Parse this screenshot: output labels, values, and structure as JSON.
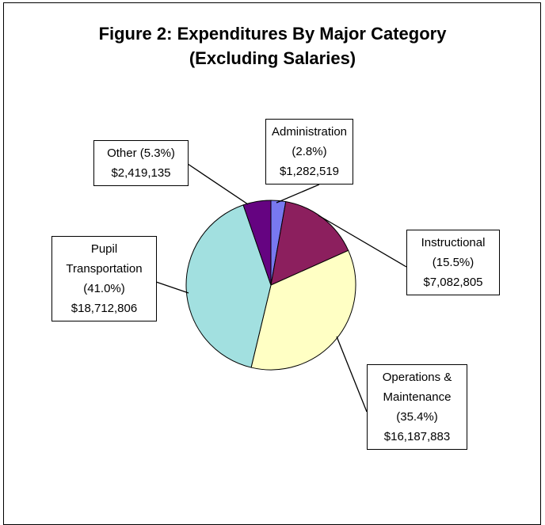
{
  "chart_data": {
    "type": "pie",
    "title": "Figure 2:  Expenditures By Major Category (Excluding Salaries)",
    "categories": [
      "Administration",
      "Instructional",
      "Operations & Maintenance",
      "Pupil Transportation",
      "Other"
    ],
    "values": [
      1282519,
      7082805,
      16187883,
      18712806,
      2419135
    ],
    "value_labels": [
      "$1,282,519",
      "$7,082,805",
      "$16,187,883",
      "$18,712,806",
      "$2,419,135"
    ],
    "percent_labels": [
      "(2.8%)",
      "(15.5%)",
      "(35.4%)",
      "(41.0%)",
      "(5.3%)"
    ],
    "colors": [
      "#7878f0",
      "#8c1f5e",
      "#ffffc4",
      "#a2e0e0",
      "#650381"
    ]
  }
}
